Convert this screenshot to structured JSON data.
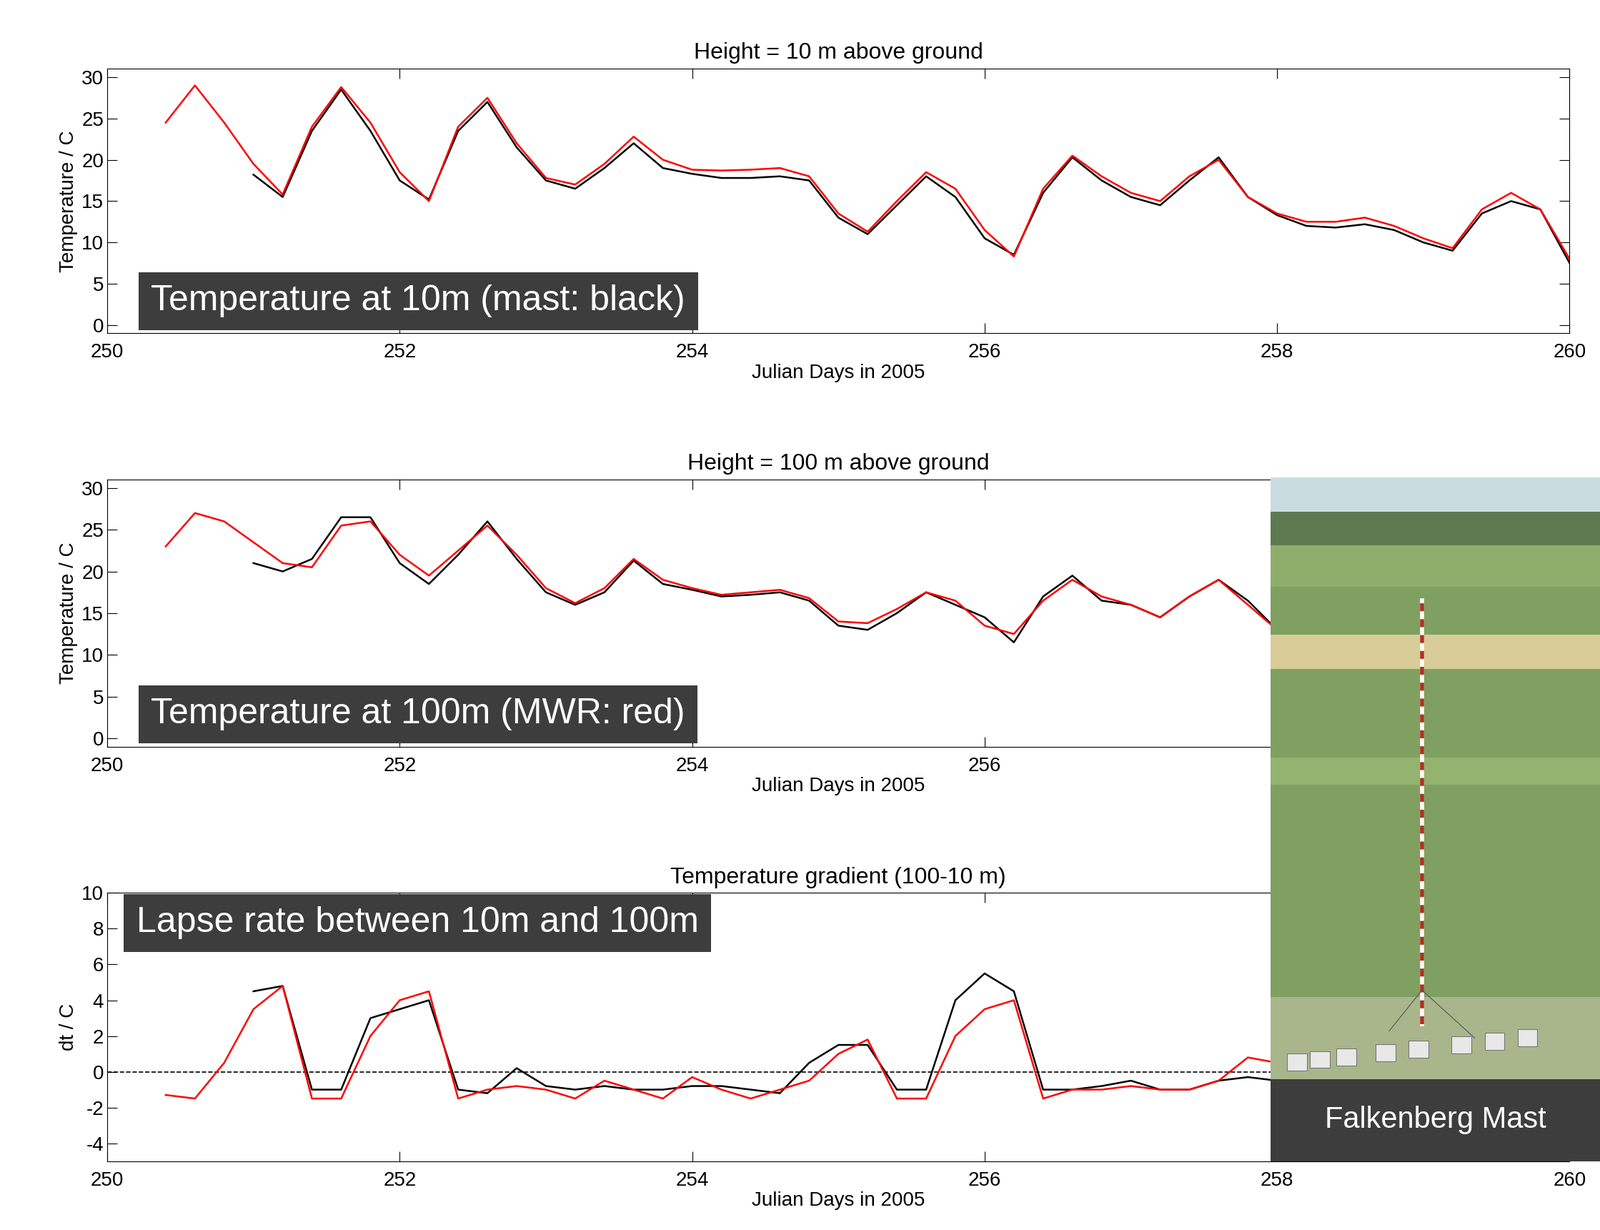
{
  "chart_data": [
    {
      "type": "line",
      "title": "Height = 10 m above ground",
      "x_label": "Julian Days in 2005",
      "y_label": "Temperature / C",
      "annotation": "Temperature at 10m (mast: black)",
      "xlim": [
        250,
        260
      ],
      "xticks": [
        250,
        252,
        254,
        256,
        258,
        260
      ],
      "ylim": [
        -1,
        31
      ],
      "yticks": [
        0,
        5,
        10,
        15,
        20,
        25,
        30
      ],
      "x": [
        250.0,
        250.2,
        250.4,
        250.6,
        250.8,
        251.0,
        251.2,
        251.4,
        251.6,
        251.8,
        252.0,
        252.2,
        252.4,
        252.6,
        252.8,
        253.0,
        253.2,
        253.4,
        253.6,
        253.8,
        254.0,
        254.2,
        254.4,
        254.6,
        254.8,
        255.0,
        255.2,
        255.4,
        255.6,
        255.8,
        256.0,
        256.2,
        256.4,
        256.6,
        256.8,
        257.0,
        257.2,
        257.4,
        257.6,
        257.8,
        258.0,
        258.2,
        258.4,
        258.6,
        258.8,
        259.0,
        259.2,
        259.4,
        259.6,
        259.8,
        260.0
      ],
      "series": [
        {
          "color": "#000000",
          "values": [
            null,
            null,
            null,
            null,
            null,
            18.2,
            15.5,
            23.5,
            28.5,
            23.5,
            17.5,
            15.2,
            23.5,
            27.0,
            21.5,
            17.5,
            16.5,
            19.0,
            22.0,
            19.0,
            18.3,
            17.8,
            17.8,
            18.0,
            17.5,
            13.0,
            11.0,
            14.5,
            18.0,
            15.5,
            10.5,
            8.5,
            16.0,
            20.3,
            17.5,
            15.5,
            14.5,
            17.5,
            20.3,
            15.5,
            13.3,
            12.0,
            11.8,
            12.2,
            11.5,
            10.0,
            9.0,
            13.5,
            15.0,
            14.0,
            7.5
          ]
        },
        {
          "color": "#ff0000",
          "values": [
            null,
            null,
            24.5,
            29.0,
            24.5,
            19.5,
            15.8,
            24.0,
            28.8,
            24.5,
            18.5,
            15.0,
            24.0,
            27.5,
            22.0,
            17.8,
            17.0,
            19.5,
            22.8,
            20.0,
            18.8,
            18.7,
            18.8,
            19.0,
            18.0,
            13.5,
            11.3,
            15.0,
            18.5,
            16.5,
            11.5,
            8.3,
            16.5,
            20.5,
            18.0,
            16.0,
            15.0,
            18.0,
            20.0,
            15.5,
            13.5,
            12.5,
            12.5,
            13.0,
            12.0,
            10.5,
            9.3,
            14.0,
            16.0,
            14.0,
            8.0
          ]
        }
      ]
    },
    {
      "type": "line",
      "title": "Height = 100 m above ground",
      "x_label": "Julian Days in 2005",
      "y_label": "Temperature / C",
      "annotation": "Temperature at 100m (MWR: red)",
      "xlim": [
        250,
        260
      ],
      "xticks": [
        250,
        252,
        254,
        256
      ],
      "ylim": [
        -1,
        31
      ],
      "yticks": [
        0,
        5,
        10,
        15,
        20,
        25,
        30
      ],
      "x": [
        250.0,
        250.2,
        250.4,
        250.6,
        250.8,
        251.0,
        251.2,
        251.4,
        251.6,
        251.8,
        252.0,
        252.2,
        252.4,
        252.6,
        252.8,
        253.0,
        253.2,
        253.4,
        253.6,
        253.8,
        254.0,
        254.2,
        254.4,
        254.6,
        254.8,
        255.0,
        255.2,
        255.4,
        255.6,
        255.8,
        256.0,
        256.2,
        256.4,
        256.6,
        256.8,
        257.0,
        257.2,
        257.4,
        257.6,
        257.8,
        258.0
      ],
      "series": [
        {
          "color": "#000000",
          "values": [
            null,
            null,
            null,
            null,
            null,
            21.0,
            20.0,
            21.5,
            26.5,
            26.5,
            21.0,
            18.5,
            22.0,
            26.0,
            21.5,
            17.5,
            16.0,
            17.5,
            21.3,
            18.5,
            17.8,
            17.0,
            17.2,
            17.5,
            16.5,
            13.5,
            13.0,
            15.0,
            17.5,
            16.0,
            14.5,
            11.5,
            17.0,
            19.5,
            16.5,
            16.0,
            14.5,
            17.0,
            19.0,
            16.5,
            13.0
          ]
        },
        {
          "color": "#ff0000",
          "values": [
            null,
            null,
            23.0,
            27.0,
            26.0,
            23.5,
            21.0,
            20.5,
            25.5,
            26.0,
            22.0,
            19.5,
            22.5,
            25.5,
            22.0,
            18.0,
            16.2,
            18.0,
            21.5,
            19.0,
            18.0,
            17.2,
            17.5,
            17.8,
            16.8,
            14.0,
            13.8,
            15.5,
            17.5,
            16.5,
            13.5,
            12.5,
            16.5,
            19.0,
            17.0,
            16.0,
            14.5,
            17.0,
            19.0,
            16.0,
            13.0
          ]
        }
      ]
    },
    {
      "type": "line",
      "title": "Temperature gradient (100-10 m)",
      "x_label": "Julian Days in 2005",
      "y_label": "dt / C",
      "annotation": "Lapse rate between 10m and 100m",
      "reference_line": 0,
      "xlim": [
        250,
        260
      ],
      "xticks": [
        250,
        252,
        254,
        256,
        258,
        260
      ],
      "ylim": [
        -5,
        10
      ],
      "yticks": [
        -4,
        -2,
        0,
        2,
        4,
        6,
        8,
        10
      ],
      "x": [
        250.0,
        250.2,
        250.4,
        250.6,
        250.8,
        251.0,
        251.2,
        251.4,
        251.6,
        251.8,
        252.0,
        252.2,
        252.4,
        252.6,
        252.8,
        253.0,
        253.2,
        253.4,
        253.6,
        253.8,
        254.0,
        254.2,
        254.4,
        254.6,
        254.8,
        255.0,
        255.2,
        255.4,
        255.6,
        255.8,
        256.0,
        256.2,
        256.4,
        256.6,
        256.8,
        257.0,
        257.2,
        257.4,
        257.6,
        257.8,
        258.0
      ],
      "series": [
        {
          "color": "#000000",
          "values": [
            null,
            null,
            null,
            null,
            null,
            4.5,
            4.8,
            -1.0,
            -1.0,
            3.0,
            3.5,
            4.0,
            -1.0,
            -1.2,
            0.2,
            -0.8,
            -1.0,
            -0.8,
            -1.0,
            -1.0,
            -0.8,
            -0.8,
            -1.0,
            -1.2,
            0.5,
            1.5,
            1.5,
            -1.0,
            -1.0,
            4.0,
            5.5,
            4.5,
            -1.0,
            -1.0,
            -0.8,
            -0.5,
            -1.0,
            -1.0,
            -0.5,
            -0.3,
            -0.5
          ]
        },
        {
          "color": "#ff0000",
          "values": [
            null,
            null,
            -1.3,
            -1.5,
            0.5,
            3.5,
            4.8,
            -1.5,
            -1.5,
            2.0,
            4.0,
            4.5,
            -1.5,
            -1.0,
            -0.8,
            -1.0,
            -1.5,
            -0.5,
            -1.0,
            -1.5,
            -0.3,
            -1.0,
            -1.5,
            -1.0,
            -0.5,
            1.0,
            1.8,
            -1.5,
            -1.5,
            2.0,
            3.5,
            4.0,
            -1.5,
            -1.0,
            -1.0,
            -0.8,
            -1.0,
            -1.0,
            -0.5,
            0.8,
            0.5
          ]
        }
      ]
    }
  ],
  "photo": {
    "caption": "Falkenberg Mast"
  }
}
